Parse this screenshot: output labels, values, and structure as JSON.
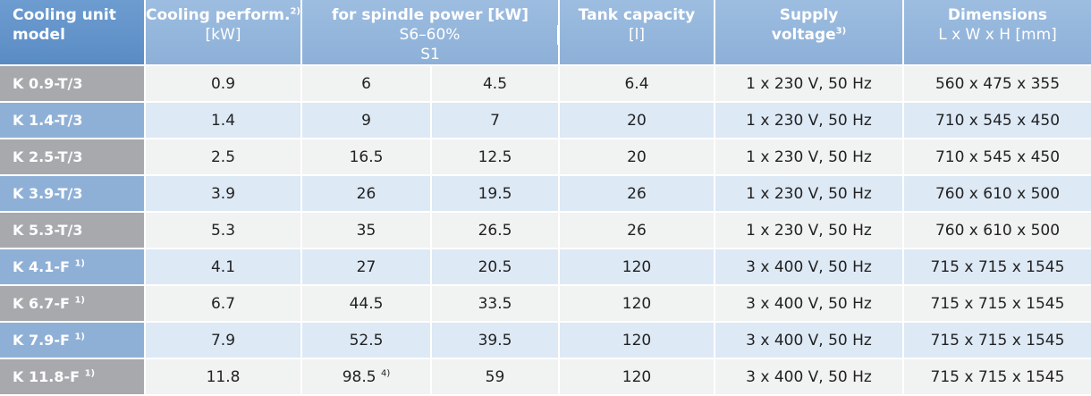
{
  "header": {
    "model": {
      "line1": "Cooling unit",
      "line2": "model"
    },
    "cooling": {
      "title": "Cooling perform.",
      "sup": "2)",
      "unit": "[kW]"
    },
    "spindle": {
      "title": "for spindle power [kW]",
      "s6": "S6–60%",
      "s1": "S1"
    },
    "tank": {
      "title": "Tank capacity",
      "unit": "[l]"
    },
    "voltage": {
      "title": "Supply",
      "title2": "voltage",
      "sup": "3)"
    },
    "dims": {
      "title": "Dimensions",
      "unit": "L x W x H [mm]"
    }
  },
  "rows": [
    {
      "model": "K 0.9-T/3",
      "model_sup": "",
      "cooling": "0.9",
      "s6": "6",
      "s6_sup": "",
      "s1": "4.5",
      "tank": "6.4",
      "voltage": "1 x 230 V, 50 Hz",
      "dims": "560 x 475 x 355"
    },
    {
      "model": "K 1.4-T/3",
      "model_sup": "",
      "cooling": "1.4",
      "s6": "9",
      "s6_sup": "",
      "s1": "7",
      "tank": "20",
      "voltage": "1 x 230 V, 50 Hz",
      "dims": "710 x 545 x 450"
    },
    {
      "model": "K 2.5-T/3",
      "model_sup": "",
      "cooling": "2.5",
      "s6": "16.5",
      "s6_sup": "",
      "s1": "12.5",
      "tank": "20",
      "voltage": "1 x 230 V, 50 Hz",
      "dims": "710 x 545 x 450"
    },
    {
      "model": "K 3.9-T/3",
      "model_sup": "",
      "cooling": "3.9",
      "s6": "26",
      "s6_sup": "",
      "s1": "19.5",
      "tank": "26",
      "voltage": "1 x 230 V, 50 Hz",
      "dims": "760 x 610 x 500"
    },
    {
      "model": "K 5.3-T/3",
      "model_sup": "",
      "cooling": "5.3",
      "s6": "35",
      "s6_sup": "",
      "s1": "26.5",
      "tank": "26",
      "voltage": "1 x 230 V, 50 Hz",
      "dims": "760 x 610 x 500"
    },
    {
      "model": "K 4.1-F",
      "model_sup": "1)",
      "cooling": "4.1",
      "s6": "27",
      "s6_sup": "",
      "s1": "20.5",
      "tank": "120",
      "voltage": "3 x 400 V, 50 Hz",
      "dims": "715 x 715 x 1545"
    },
    {
      "model": "K 6.7-F",
      "model_sup": "1)",
      "cooling": "6.7",
      "s6": "44.5",
      "s6_sup": "",
      "s1": "33.5",
      "tank": "120",
      "voltage": "3 x 400 V, 50 Hz",
      "dims": "715 x 715 x 1545"
    },
    {
      "model": "K 7.9-F",
      "model_sup": "1)",
      "cooling": "7.9",
      "s6": "52.5",
      "s6_sup": "",
      "s1": "39.5",
      "tank": "120",
      "voltage": "3 x 400 V, 50 Hz",
      "dims": "715 x 715 x 1545"
    },
    {
      "model": "K 11.8-F",
      "model_sup": "1)",
      "cooling": "11.8",
      "s6": "98.5",
      "s6_sup": "4)",
      "s1": "59",
      "tank": "120",
      "voltage": "3 x 400 V, 50 Hz",
      "dims": "715 x 715 x 1545"
    }
  ]
}
